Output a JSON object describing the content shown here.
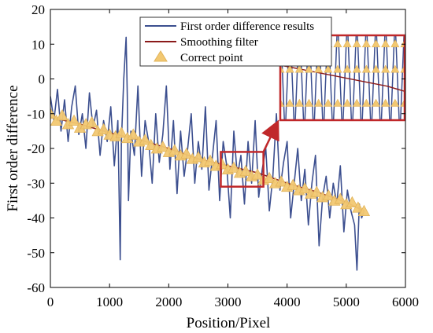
{
  "chart_data": {
    "type": "line",
    "xlabel": "Position/Pixel",
    "ylabel": "First order difference",
    "xlim": [
      0,
      6000
    ],
    "ylim": [
      -60,
      20
    ],
    "xticks": [
      "0",
      "1000",
      "2000",
      "3000",
      "4000",
      "5000",
      "6000"
    ],
    "yticks": [
      "20",
      "10",
      "0",
      "-10",
      "-20",
      "-30",
      "-40",
      "-50",
      "-60"
    ],
    "grid": false,
    "legend_position": "top-right",
    "series": [
      {
        "name": "First order difference results",
        "kind": "line",
        "color": "#3c4f8f",
        "x": [
          0,
          60,
          120,
          180,
          240,
          300,
          360,
          420,
          480,
          540,
          600,
          660,
          720,
          780,
          840,
          900,
          960,
          1020,
          1080,
          1140,
          1180,
          1200,
          1240,
          1280,
          1300,
          1320,
          1360,
          1420,
          1480,
          1540,
          1600,
          1660,
          1720,
          1780,
          1840,
          1900,
          1960,
          2020,
          2080,
          2140,
          2200,
          2260,
          2320,
          2380,
          2440,
          2500,
          2560,
          2620,
          2680,
          2740,
          2800,
          2860,
          2920,
          2980,
          3040,
          3100,
          3160,
          3220,
          3280,
          3340,
          3400,
          3460,
          3520,
          3580,
          3640,
          3700,
          3760,
          3820,
          3880,
          3940,
          4000,
          4060,
          4120,
          4180,
          4240,
          4300,
          4360,
          4420,
          4480,
          4540,
          4600,
          4660,
          4720,
          4780,
          4840,
          4900,
          4960,
          5020,
          5080,
          5140,
          5180,
          5220,
          5260,
          5300
        ],
        "y": [
          -5,
          -12,
          -3,
          -15,
          -6,
          -18,
          -8,
          -2,
          -16,
          -10,
          -20,
          -4,
          -14,
          -9,
          -22,
          -12,
          -18,
          -8,
          -25,
          -12,
          -52,
          -18,
          0,
          12,
          -5,
          -35,
          -15,
          -22,
          -2,
          -28,
          -12,
          -18,
          -30,
          -10,
          -24,
          -16,
          -2,
          -26,
          -12,
          -33,
          -15,
          -28,
          -20,
          -10,
          -30,
          -18,
          -26,
          -8,
          -32,
          -22,
          -12,
          -35,
          -18,
          -25,
          -40,
          -15,
          -28,
          -22,
          -36,
          -18,
          -30,
          -12,
          -34,
          -26,
          -20,
          -38,
          -28,
          -10,
          -32,
          -24,
          -18,
          -40,
          -30,
          -20,
          -35,
          -26,
          -42,
          -30,
          -22,
          -48,
          -34,
          -28,
          -40,
          -30,
          -36,
          -25,
          -44,
          -32,
          -38,
          -42,
          -55,
          -36,
          -40,
          -38
        ]
      },
      {
        "name": "Smoothing filter",
        "kind": "line",
        "color": "#8b1a1a",
        "x": [
          0,
          500,
          1000,
          1500,
          2000,
          2500,
          3000,
          3500,
          4000,
          4500,
          5000,
          5300
        ],
        "y": [
          -11,
          -13,
          -15.5,
          -17.5,
          -20,
          -23,
          -25,
          -27,
          -30,
          -32.5,
          -35.5,
          -38
        ]
      },
      {
        "name": "Correct point",
        "kind": "scatter",
        "color": "#f2c872",
        "x": [
          0,
          100,
          200,
          300,
          400,
          500,
          600,
          700,
          800,
          900,
          1000,
          1100,
          1200,
          1300,
          1400,
          1500,
          1600,
          1700,
          1800,
          1900,
          2000,
          2100,
          2200,
          2300,
          2400,
          2500,
          2600,
          2700,
          2800,
          2900,
          3000,
          3100,
          3200,
          3300,
          3400,
          3500,
          3600,
          3700,
          3800,
          3900,
          4000,
          4100,
          4200,
          4300,
          4400,
          4500,
          4600,
          4700,
          4800,
          4900,
          5000,
          5100,
          5200,
          5300
        ],
        "y": [
          -10,
          -12,
          -10.5,
          -13,
          -12,
          -14,
          -13,
          -12.5,
          -15,
          -14.5,
          -16,
          -16.5,
          -15.5,
          -17,
          -16,
          -18,
          -17.5,
          -19,
          -20,
          -19.5,
          -21,
          -20.5,
          -22,
          -21.5,
          -23,
          -22.5,
          -24,
          -23.5,
          -25,
          -24.5,
          -26,
          -25.5,
          -27,
          -26.5,
          -28,
          -27.5,
          -29,
          -28.5,
          -30,
          -29.5,
          -31,
          -30.5,
          -32,
          -31.5,
          -33,
          -32.5,
          -34,
          -33.5,
          -35,
          -34.5,
          -36,
          -35.5,
          -37,
          -38
        ]
      }
    ],
    "annotations": [
      {
        "type": "highlight-box",
        "color": "#c0282a",
        "x_range": [
          2880,
          3600
        ],
        "y_range": [
          -31,
          -21
        ]
      },
      {
        "type": "zoom-inset",
        "color": "#c0282a",
        "position": "upper-right",
        "points_to": "highlight-box"
      }
    ]
  }
}
